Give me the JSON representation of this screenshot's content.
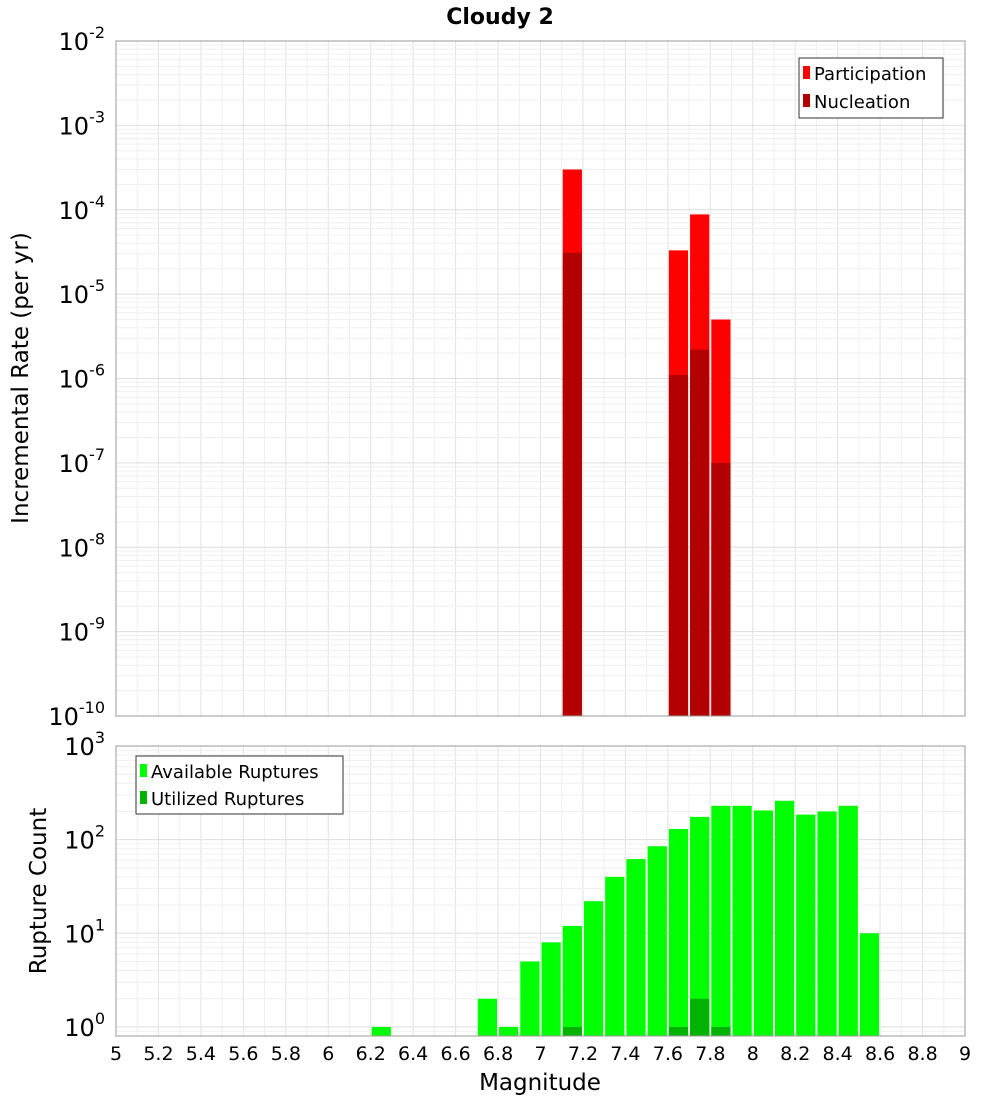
{
  "title": "Cloudy 2",
  "chart_data": [
    {
      "type": "bar",
      "title": "Cloudy 2",
      "xlabel": "Magnitude",
      "ylabel": "Incremental Rate (per yr)",
      "yscale": "log",
      "ylim": [
        1e-10,
        0.01
      ],
      "xlim": [
        5,
        9
      ],
      "bin_width": 0.1,
      "grid": true,
      "legend_position": "top-right",
      "y_ticks": [
        {
          "base": "10",
          "exp": "-2"
        },
        {
          "base": "10",
          "exp": "-3"
        },
        {
          "base": "10",
          "exp": "-4"
        },
        {
          "base": "10",
          "exp": "-5"
        },
        {
          "base": "10",
          "exp": "-6"
        },
        {
          "base": "10",
          "exp": "-7"
        },
        {
          "base": "10",
          "exp": "-8"
        },
        {
          "base": "10",
          "exp": "-9"
        },
        {
          "base": "10",
          "exp": "-10"
        }
      ],
      "series": [
        {
          "name": "Participation",
          "color": "#ff0000",
          "x": [
            7.15,
            7.65,
            7.75,
            7.85
          ],
          "values": [
            0.0003,
            3.3e-05,
            8.8e-05,
            5e-06
          ]
        },
        {
          "name": "Nucleation",
          "color": "#b30000",
          "x": [
            7.15,
            7.65,
            7.75,
            7.85
          ],
          "values": [
            3.1e-05,
            1.1e-06,
            2.2e-06,
            1e-07
          ]
        }
      ]
    },
    {
      "type": "bar",
      "xlabel": "Magnitude",
      "ylabel": "Rupture Count",
      "yscale": "log",
      "ylim": [
        0.8,
        1000
      ],
      "xlim": [
        5,
        9
      ],
      "bin_width": 0.1,
      "grid": true,
      "legend_position": "top-left",
      "x_ticks": [
        "5",
        "5.2",
        "5.4",
        "5.6",
        "5.8",
        "6",
        "6.2",
        "6.4",
        "6.6",
        "6.8",
        "7",
        "7.2",
        "7.4",
        "7.6",
        "7.8",
        "8",
        "8.2",
        "8.4",
        "8.6",
        "8.8",
        "9"
      ],
      "y_ticks": [
        {
          "base": "10",
          "exp": "3"
        },
        {
          "base": "10",
          "exp": "2"
        },
        {
          "base": "10",
          "exp": "1"
        },
        {
          "base": "10",
          "exp": "0"
        }
      ],
      "series": [
        {
          "name": "Available Ruptures",
          "color": "#00ff00",
          "x": [
            6.25,
            6.75,
            6.85,
            6.95,
            7.05,
            7.15,
            7.25,
            7.35,
            7.45,
            7.55,
            7.65,
            7.75,
            7.85,
            7.95,
            8.05,
            8.15,
            8.25,
            8.35,
            8.45,
            8.55
          ],
          "values": [
            1,
            2,
            1,
            5,
            8,
            12,
            22,
            40,
            62,
            85,
            130,
            175,
            230,
            230,
            205,
            260,
            185,
            200,
            230,
            10
          ]
        },
        {
          "name": "Utilized Ruptures",
          "color": "#00b300",
          "x": [
            7.15,
            7.65,
            7.75,
            7.85
          ],
          "values": [
            1,
            1,
            2,
            1
          ]
        }
      ]
    }
  ]
}
